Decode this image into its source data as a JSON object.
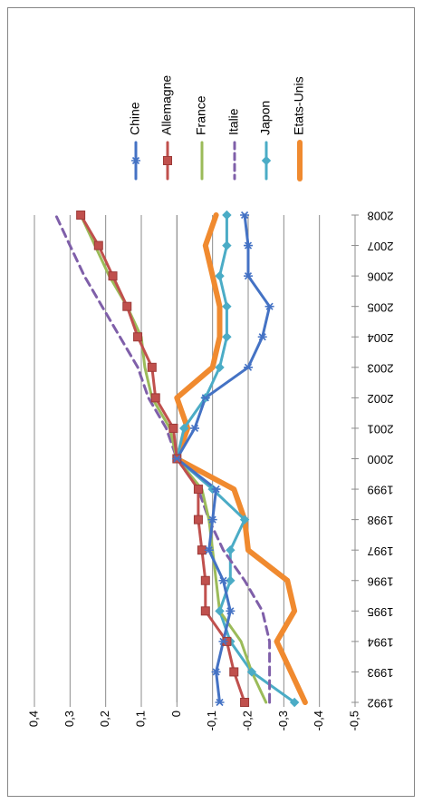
{
  "chart_data": {
    "type": "line",
    "orientation": "rotated-90-clockwise",
    "categories": [
      "1992",
      "1993",
      "1994",
      "1995",
      "1996",
      "1997",
      "1998",
      "1999",
      "2000",
      "2001",
      "2002",
      "2003",
      "2004",
      "2005",
      "2006",
      "2007",
      "2008"
    ],
    "y_ticks": [
      "0,4",
      "0,3",
      "0,2",
      "0,1",
      "0",
      "-0,1",
      "-0,2",
      "-0,3",
      "-0,4",
      "-0,5"
    ],
    "ylim": [
      -0.5,
      0.4
    ],
    "grid": true,
    "legend_position": "top",
    "series": [
      {
        "name": "Chine",
        "color": "#4472c4",
        "marker": "star",
        "dash": false,
        "values": [
          -0.12,
          -0.11,
          -0.13,
          -0.15,
          -0.13,
          -0.09,
          -0.1,
          -0.11,
          0.0,
          -0.05,
          -0.08,
          -0.2,
          -0.24,
          -0.26,
          -0.2,
          -0.2,
          -0.19
        ]
      },
      {
        "name": "Allemagne",
        "color": "#c0504d",
        "marker": "square",
        "dash": false,
        "values": [
          -0.19,
          -0.16,
          -0.14,
          -0.08,
          -0.08,
          -0.07,
          -0.06,
          -0.06,
          0.0,
          0.01,
          0.06,
          0.07,
          0.11,
          0.14,
          0.18,
          0.22,
          0.27
        ]
      },
      {
        "name": "France",
        "color": "#9bbb59",
        "marker": "none",
        "dash": false,
        "values": [
          -0.25,
          -0.21,
          -0.18,
          -0.12,
          -0.11,
          -0.1,
          -0.09,
          -0.07,
          0.0,
          0.02,
          0.07,
          0.09,
          0.1,
          0.14,
          0.19,
          0.23,
          0.27
        ]
      },
      {
        "name": "Italie",
        "color": "#7f5fa9",
        "marker": "none",
        "dash": true,
        "values": [
          -0.26,
          -0.26,
          -0.26,
          -0.24,
          -0.19,
          -0.13,
          -0.09,
          -0.06,
          0.0,
          0.03,
          0.08,
          0.11,
          0.16,
          0.21,
          0.26,
          0.3,
          0.34
        ]
      },
      {
        "name": "Japon",
        "color": "#4bacc6",
        "marker": "diamond",
        "dash": false,
        "values": [
          -0.33,
          -0.21,
          -0.15,
          -0.12,
          -0.15,
          -0.15,
          -0.19,
          -0.1,
          0.0,
          -0.02,
          -0.08,
          -0.12,
          -0.14,
          -0.14,
          -0.12,
          -0.14,
          -0.14
        ]
      },
      {
        "name": "Etats-Unis",
        "color": "#f08a2f",
        "marker": "none",
        "dash": false,
        "values": [
          -0.36,
          -0.32,
          -0.28,
          -0.33,
          -0.31,
          -0.2,
          -0.19,
          -0.16,
          0.0,
          -0.03,
          0.0,
          -0.1,
          -0.12,
          -0.12,
          -0.1,
          -0.08,
          -0.11
        ]
      }
    ]
  }
}
